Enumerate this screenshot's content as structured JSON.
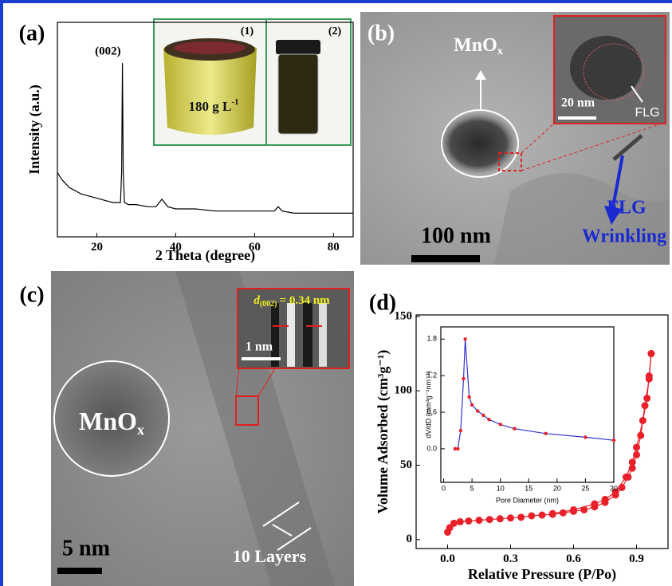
{
  "chart_data": [
    {
      "type": "line",
      "xlabel": "2 Theta (degree)",
      "ylabel": "Intensity (a.u.)",
      "x": [
        10,
        11,
        12,
        13,
        14,
        15,
        16,
        18,
        20,
        22,
        24,
        25,
        26,
        26.3,
        26.5,
        26.7,
        27,
        28,
        30,
        33,
        35,
        36.5,
        38,
        40,
        45,
        50,
        55,
        60,
        65,
        66,
        67,
        70,
        75,
        80,
        85
      ],
      "values": [
        30,
        27,
        25,
        23,
        22,
        21,
        20,
        19,
        18,
        17,
        16,
        16,
        16,
        30,
        81,
        30,
        16,
        15,
        15,
        14,
        14,
        17.5,
        14,
        13,
        13,
        12,
        12,
        12,
        12,
        14,
        12,
        11,
        11,
        11,
        11
      ],
      "color": "#000000",
      "xlim": [
        10,
        85
      ],
      "ylim": [
        0,
        100
      ],
      "xticks": [
        20,
        40,
        60,
        80
      ],
      "annotations": [
        "(002)"
      ]
    },
    {
      "type": "line",
      "xlabel": "Relative Pressure (P/Po)",
      "ylabel": "Volume Adsorbed (cm³g⁻¹)",
      "series": [
        {
          "color": "#e8202a",
          "x": [
            0.0,
            0.01,
            0.03,
            0.06,
            0.1,
            0.15,
            0.2,
            0.25,
            0.3,
            0.35,
            0.4,
            0.45,
            0.5,
            0.55,
            0.6,
            0.65,
            0.7,
            0.75,
            0.8,
            0.83,
            0.86,
            0.88,
            0.9,
            0.92,
            0.94,
            0.96,
            0.97
          ],
          "values": [
            5,
            8,
            11,
            12,
            12.5,
            13,
            13.5,
            14,
            14.5,
            15,
            16,
            16.5,
            17,
            18,
            19,
            20,
            22,
            25,
            30,
            35,
            42,
            48,
            57,
            70,
            90,
            108,
            125
          ]
        },
        {
          "color": "#e8202a",
          "x": [
            0.97,
            0.96,
            0.95,
            0.93,
            0.9,
            0.88,
            0.85,
            0.8,
            0.75,
            0.7,
            0.6,
            0.5
          ],
          "values": [
            125,
            110,
            95,
            80,
            62,
            52,
            42,
            32,
            27,
            24,
            20,
            17.5
          ]
        }
      ],
      "markers": true,
      "xlim": [
        -0.15,
        1.05
      ],
      "ylim": [
        -6,
        151
      ],
      "xticks": [
        {
          "value": 0,
          "label": "0.0"
        },
        {
          "value": 0.3,
          "label": "0.3"
        },
        {
          "value": 0.6,
          "label": "0.6"
        },
        {
          "value": 0.9,
          "label": "0.9"
        }
      ],
      "yticks": [
        0,
        50,
        100,
        150
      ]
    },
    {
      "type": "line",
      "xlabel": "Pore Diameter (nm)",
      "ylabel": "dV/dD (mm³g⁻¹nm⁻¹)",
      "series": [
        {
          "color": "#3333cc",
          "marker_color": "#e8202a",
          "x": [
            2,
            2.5,
            3,
            3.5,
            3.8,
            4.5,
            5,
            6,
            7,
            8,
            10,
            12.5,
            18,
            25,
            30
          ],
          "values": [
            0,
            0,
            0.3,
            1.15,
            1.8,
            0.85,
            0.72,
            0.62,
            0.55,
            0.48,
            0.4,
            0.33,
            0.25,
            0.19,
            0.14
          ]
        }
      ],
      "markers": true,
      "xlim": [
        -0.5,
        30
      ],
      "ylim": [
        -0.55,
        2.0
      ],
      "xticks": [
        0,
        5,
        10,
        15,
        20,
        25,
        30
      ],
      "yticks": [
        {
          "value": 0,
          "label": "0.0"
        },
        {
          "value": 0.6,
          "label": "0.6"
        },
        {
          "value": 1.2,
          "label": "1.2"
        },
        {
          "value": 1.8,
          "label": "1.8"
        }
      ]
    }
  ],
  "panels": {
    "labels": [
      "(a)",
      "(b)",
      "(c)",
      "(d)"
    ],
    "a_inset": {
      "photo_1": "(1)",
      "photo_2": "(2)",
      "concentration": "180 g L",
      "concentration_sup": "-1"
    },
    "b": {
      "particle": "MnO",
      "particle_sub": "x",
      "inset_scale": "20 nm",
      "flg": "FLG",
      "wrinkling_1": "FLG",
      "wrinkling_2": "Wrinkling",
      "scale": "100 nm"
    },
    "c": {
      "spacing_d": "d",
      "spacing_sub": "(002)",
      "spacing_value": "= 0.34 nm",
      "inset_scale": "1 nm",
      "particle": "MnO",
      "particle_sub": "x",
      "scale": "5 nm",
      "layers": "10 Layers"
    }
  }
}
